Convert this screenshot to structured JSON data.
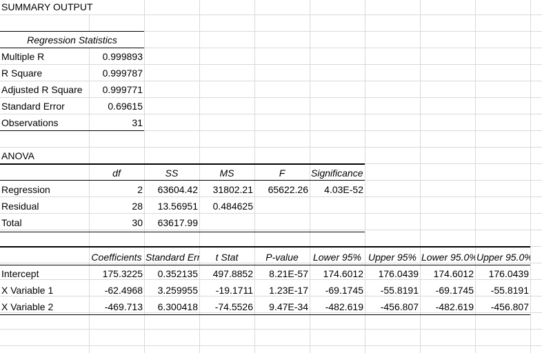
{
  "summary": {
    "title": "SUMMARY OUTPUT"
  },
  "regression_statistics": {
    "header": "Regression Statistics",
    "rows": [
      {
        "label": "Multiple R",
        "value": "0.999893"
      },
      {
        "label": "R Square",
        "value": "0.999787"
      },
      {
        "label": "Adjusted R Square",
        "value": "0.999771"
      },
      {
        "label": "Standard Error",
        "value": "0.69615"
      },
      {
        "label": "Observations",
        "value": "31"
      }
    ]
  },
  "anova": {
    "title": "ANOVA",
    "headers": [
      "df",
      "SS",
      "MS",
      "F",
      "Significance F"
    ],
    "rows": [
      {
        "label": "Regression",
        "df": "2",
        "ss": "63604.42",
        "ms": "31802.21",
        "f": "65622.26",
        "sig_f": "4.03E-52"
      },
      {
        "label": "Residual",
        "df": "28",
        "ss": "13.56951",
        "ms": "0.484625",
        "f": "",
        "sig_f": ""
      },
      {
        "label": "Total",
        "df": "30",
        "ss": "63617.99",
        "ms": "",
        "f": "",
        "sig_f": ""
      }
    ]
  },
  "coefficients": {
    "headers": [
      "Coefficients",
      "Standard Error",
      "t Stat",
      "P-value",
      "Lower 95%",
      "Upper 95%",
      "Lower 95.0%",
      "Upper 95.0%"
    ],
    "rows": [
      {
        "label": "Intercept",
        "values": [
          "175.3225",
          "0.352135",
          "497.8852",
          "8.21E-57",
          "174.6012",
          "176.0439",
          "174.6012",
          "176.0439"
        ]
      },
      {
        "label": "X Variable 1",
        "values": [
          "-62.4968",
          "3.259955",
          "-19.1711",
          "1.23E-17",
          "-69.1745",
          "-55.8191",
          "-69.1745",
          "-55.8191"
        ]
      },
      {
        "label": "X Variable 2",
        "values": [
          "-469.713",
          "6.300418",
          "-74.5526",
          "9.47E-34",
          "-482.619",
          "-456.807",
          "-482.619",
          "-456.807"
        ]
      }
    ]
  }
}
